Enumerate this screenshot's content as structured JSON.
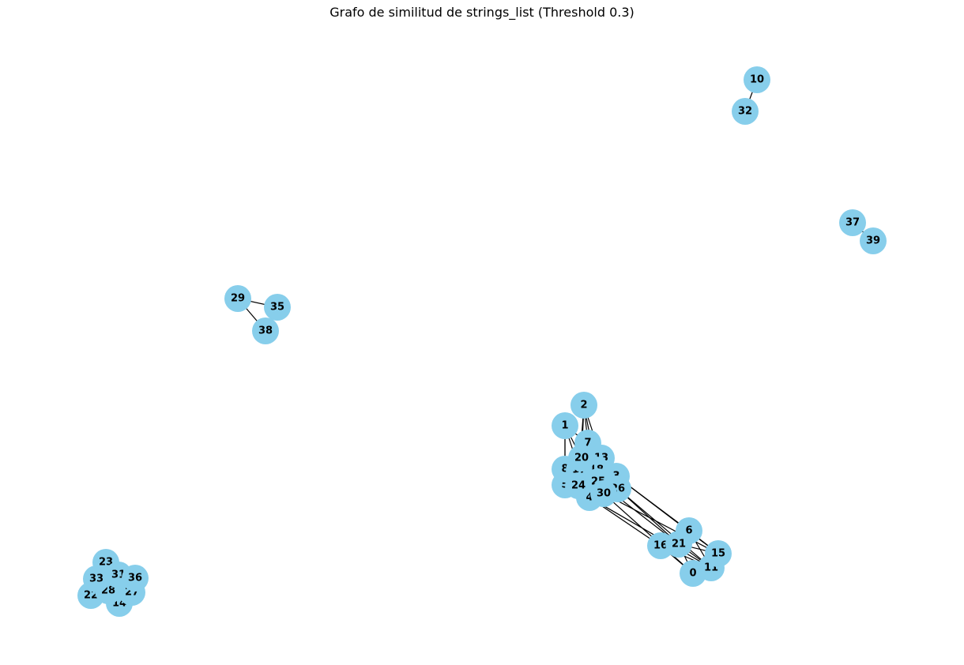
{
  "title": "Grafo de similitud de strings_list (Threshold 0.3)",
  "colors": {
    "node": "#87ceeb",
    "edge": "#000000",
    "label": "#000000",
    "background": "#ffffff"
  },
  "graph": {
    "nodes": [
      "0",
      "1",
      "2",
      "3",
      "4",
      "5",
      "6",
      "7",
      "8",
      "10",
      "11",
      "13",
      "14",
      "15",
      "16",
      "17",
      "18",
      "20",
      "21",
      "22",
      "23",
      "24",
      "25",
      "26",
      "27",
      "28",
      "29",
      "30",
      "31",
      "32",
      "33",
      "35",
      "36",
      "37",
      "38",
      "39"
    ],
    "edges": [
      [
        "10",
        "32"
      ],
      [
        "37",
        "39"
      ],
      [
        "29",
        "35"
      ],
      [
        "29",
        "38"
      ],
      [
        "35",
        "38"
      ],
      [
        "2",
        "7"
      ],
      [
        "2",
        "20"
      ],
      [
        "2",
        "13"
      ],
      [
        "2",
        "18"
      ],
      [
        "2",
        "17"
      ],
      [
        "1",
        "7"
      ],
      [
        "1",
        "8"
      ],
      [
        "1",
        "5"
      ],
      [
        "1",
        "20"
      ],
      [
        "1",
        "17"
      ],
      [
        "7",
        "13"
      ],
      [
        "7",
        "20"
      ],
      [
        "8",
        "5"
      ],
      [
        "8",
        "17"
      ],
      [
        "20",
        "18"
      ],
      [
        "17",
        "24"
      ],
      [
        "18",
        "25"
      ],
      [
        "13",
        "3"
      ],
      [
        "25",
        "26"
      ],
      [
        "24",
        "4"
      ],
      [
        "30",
        "26"
      ],
      [
        "4",
        "30"
      ],
      [
        "3",
        "26"
      ],
      [
        "3",
        "6"
      ],
      [
        "3",
        "15"
      ],
      [
        "26",
        "21"
      ],
      [
        "26",
        "11"
      ],
      [
        "30",
        "0"
      ],
      [
        "30",
        "15"
      ],
      [
        "25",
        "21"
      ],
      [
        "4",
        "16"
      ],
      [
        "4",
        "11"
      ],
      [
        "16",
        "6"
      ],
      [
        "16",
        "21"
      ],
      [
        "16",
        "0"
      ],
      [
        "16",
        "11"
      ],
      [
        "6",
        "21"
      ],
      [
        "6",
        "15"
      ],
      [
        "6",
        "11"
      ],
      [
        "21",
        "15"
      ],
      [
        "21",
        "0"
      ],
      [
        "21",
        "11"
      ],
      [
        "15",
        "11"
      ],
      [
        "0",
        "11"
      ]
    ]
  }
}
